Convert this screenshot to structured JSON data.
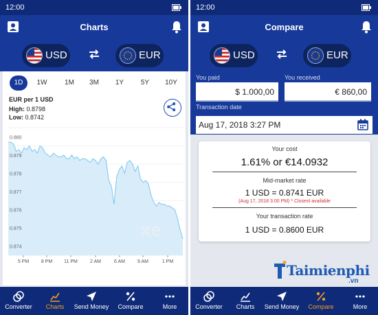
{
  "colors": {
    "primary": "#17399a",
    "statusbar": "#0f2a78",
    "accent": "#f0a020",
    "chart_fill": "#d8ecf9",
    "chart_line": "#7cc7ee",
    "warning": "#d32f2f"
  },
  "left": {
    "status_time": "12:00",
    "title": "Charts",
    "from_currency": "USD",
    "to_currency": "EUR",
    "ranges": [
      "1D",
      "1W",
      "1M",
      "3M",
      "1Y",
      "5Y",
      "10Y"
    ],
    "active_range": "1D",
    "rate_title": "EUR per 1 USD",
    "high_label": "High:",
    "high_value": "0.8798",
    "low_label": "Low:",
    "low_value": "0.8742",
    "watermark": "xe"
  },
  "chart_data": {
    "type": "area",
    "title": "EUR per 1 USD",
    "xlabel": "",
    "ylabel": "",
    "ylim": [
      0.8735,
      0.8805
    ],
    "y_ticks": [
      "0.880",
      "0.879",
      "0.878",
      "0.877",
      "0.876",
      "0.875",
      "0.874"
    ],
    "x_ticks": [
      "5 PM",
      "8 PM",
      "11 PM",
      "2 AM",
      "6 AM",
      "9 AM",
      "1 PM"
    ],
    "grid": true,
    "series": [
      {
        "values": [
          0.8797,
          0.8797,
          0.8796,
          0.8792,
          0.8793,
          0.8791,
          0.8794,
          0.8793,
          0.8795,
          0.8792,
          0.8793,
          0.8791,
          0.8795,
          0.8794,
          0.8791,
          0.879,
          0.8789,
          0.8791,
          0.879,
          0.8789,
          0.8789,
          0.879,
          0.8788,
          0.8788,
          0.879,
          0.8788,
          0.8789,
          0.8787,
          0.8788,
          0.8788,
          0.8787,
          0.8786,
          0.8788,
          0.8787,
          0.8785,
          0.8788,
          0.8789,
          0.8787,
          0.8776,
          0.8773,
          0.8763,
          0.8778,
          0.8782,
          0.8784,
          0.878,
          0.8786,
          0.8787,
          0.8785,
          0.8781,
          0.8784,
          0.8777,
          0.8775,
          0.8776,
          0.8774,
          0.8768,
          0.8764,
          0.8762,
          0.8764,
          0.8763,
          0.8763,
          0.8762,
          0.8762,
          0.8761,
          0.876,
          0.8755,
          0.8749,
          0.8744
        ]
      }
    ]
  },
  "left_nav": [
    {
      "label": "Converter",
      "icon": "coins-icon"
    },
    {
      "label": "Charts",
      "icon": "chart-icon",
      "active": true
    },
    {
      "label": "Send Money",
      "icon": "send-icon"
    },
    {
      "label": "Compare",
      "icon": "percent-icon"
    },
    {
      "label": "More",
      "icon": "more-icon"
    }
  ],
  "right": {
    "status_time": "12:00",
    "title": "Compare",
    "from_currency": "USD",
    "to_currency": "EUR",
    "you_paid_label": "You paid",
    "you_paid_value": "$ 1.000,00",
    "you_received_label": "You received",
    "you_received_value": "€ 860,00",
    "transaction_date_label": "Transaction date",
    "transaction_date_value": "Aug 17, 2018 3:27 PM",
    "your_cost_label": "Your cost",
    "your_cost_value": "1.61% or €14.0932",
    "mid_market_label": "Mid-market rate",
    "mid_market_value": "1 USD = 0.8741 EUR",
    "mid_market_note": "(Aug 17, 2018 3:00 PM) * Closest available",
    "your_rate_label": "Your transaction rate",
    "your_rate_value": "1 USD = 0.8600 EUR"
  },
  "right_nav": [
    {
      "label": "Converter",
      "icon": "coins-icon"
    },
    {
      "label": "Charts",
      "icon": "chart-icon"
    },
    {
      "label": "Send Money",
      "icon": "send-icon"
    },
    {
      "label": "Compare",
      "icon": "percent-icon",
      "active": true
    },
    {
      "label": "More",
      "icon": "more-icon"
    }
  ],
  "watermark": {
    "text": "Taimienphi",
    "sub": ".vn"
  }
}
